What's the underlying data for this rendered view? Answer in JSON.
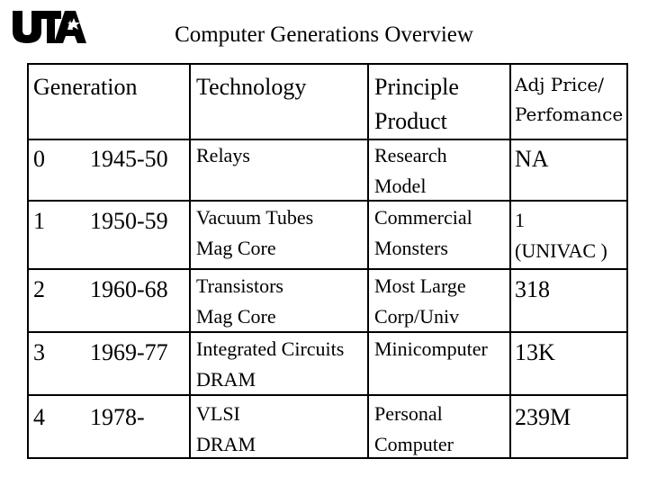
{
  "logo": {
    "text": "UTA",
    "color": "#000000"
  },
  "title": "Computer Generations Overview",
  "table": {
    "headers": {
      "generation": "Generation",
      "technology": "Technology",
      "product": "Principle\nProduct",
      "price": "Adj Price/\nPerfomance"
    },
    "rows": [
      {
        "gen": "0",
        "years": "1945-50",
        "tech": "Relays",
        "product": "Research\nModel",
        "price": "NA"
      },
      {
        "gen": "1",
        "years": "1950-59",
        "tech": "Vacuum Tubes\nMag Core",
        "product": "Commercial\nMonsters",
        "price": "1\n(UNIVAC )"
      },
      {
        "gen": "2",
        "years": "1960-68",
        "tech": "Transistors\nMag Core",
        "product": "Most Large\nCorp/Univ",
        "price": "318"
      },
      {
        "gen": "3",
        "years": "1969-77",
        "tech": "Integrated Circuits\nDRAM",
        "product": "Minicomputer",
        "price": "13K"
      },
      {
        "gen": "4",
        "years": "1978-",
        "tech": "VLSI\nDRAM",
        "product": "Personal\nComputer",
        "price": "239M"
      }
    ]
  }
}
